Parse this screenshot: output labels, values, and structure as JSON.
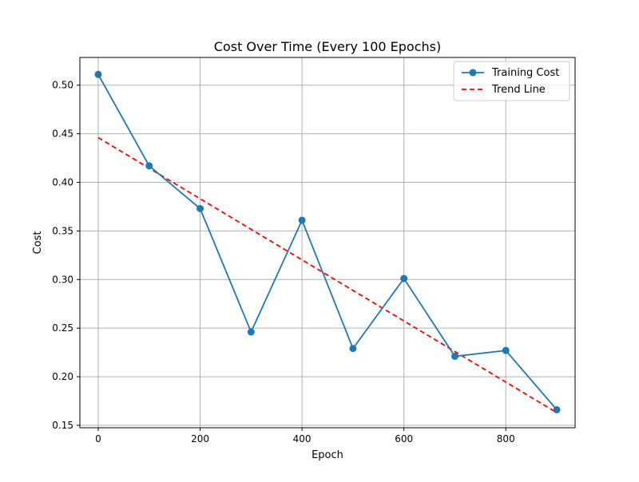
{
  "chart_data": {
    "type": "line",
    "title": "Cost Over Time (Every 100 Epochs)",
    "xlabel": "Epoch",
    "ylabel": "Cost",
    "xlim": [
      -36,
      936
    ],
    "ylim": [
      0.1475,
      0.5285
    ],
    "xticks": [
      0,
      200,
      400,
      600,
      800
    ],
    "xtick_labels": [
      "0",
      "200",
      "400",
      "600",
      "800"
    ],
    "yticks": [
      0.15,
      0.2,
      0.25,
      0.3,
      0.35,
      0.4,
      0.45,
      0.5
    ],
    "ytick_labels": [
      "0.15",
      "0.20",
      "0.25",
      "0.30",
      "0.35",
      "0.40",
      "0.45",
      "0.50"
    ],
    "grid": true,
    "legend_position": "top-right",
    "series": [
      {
        "name": "Training Cost",
        "style": "solid-line-with-circle-markers",
        "color": "#1f77b4",
        "x": [
          0,
          100,
          200,
          300,
          400,
          500,
          600,
          700,
          800,
          900
        ],
        "y": [
          0.511,
          0.417,
          0.373,
          0.246,
          0.361,
          0.229,
          0.301,
          0.221,
          0.227,
          0.166
        ]
      },
      {
        "name": "Trend Line",
        "style": "dashed-line",
        "color": "#ff0000",
        "x": [
          0,
          900
        ],
        "y": [
          0.446,
          0.163
        ]
      }
    ]
  }
}
